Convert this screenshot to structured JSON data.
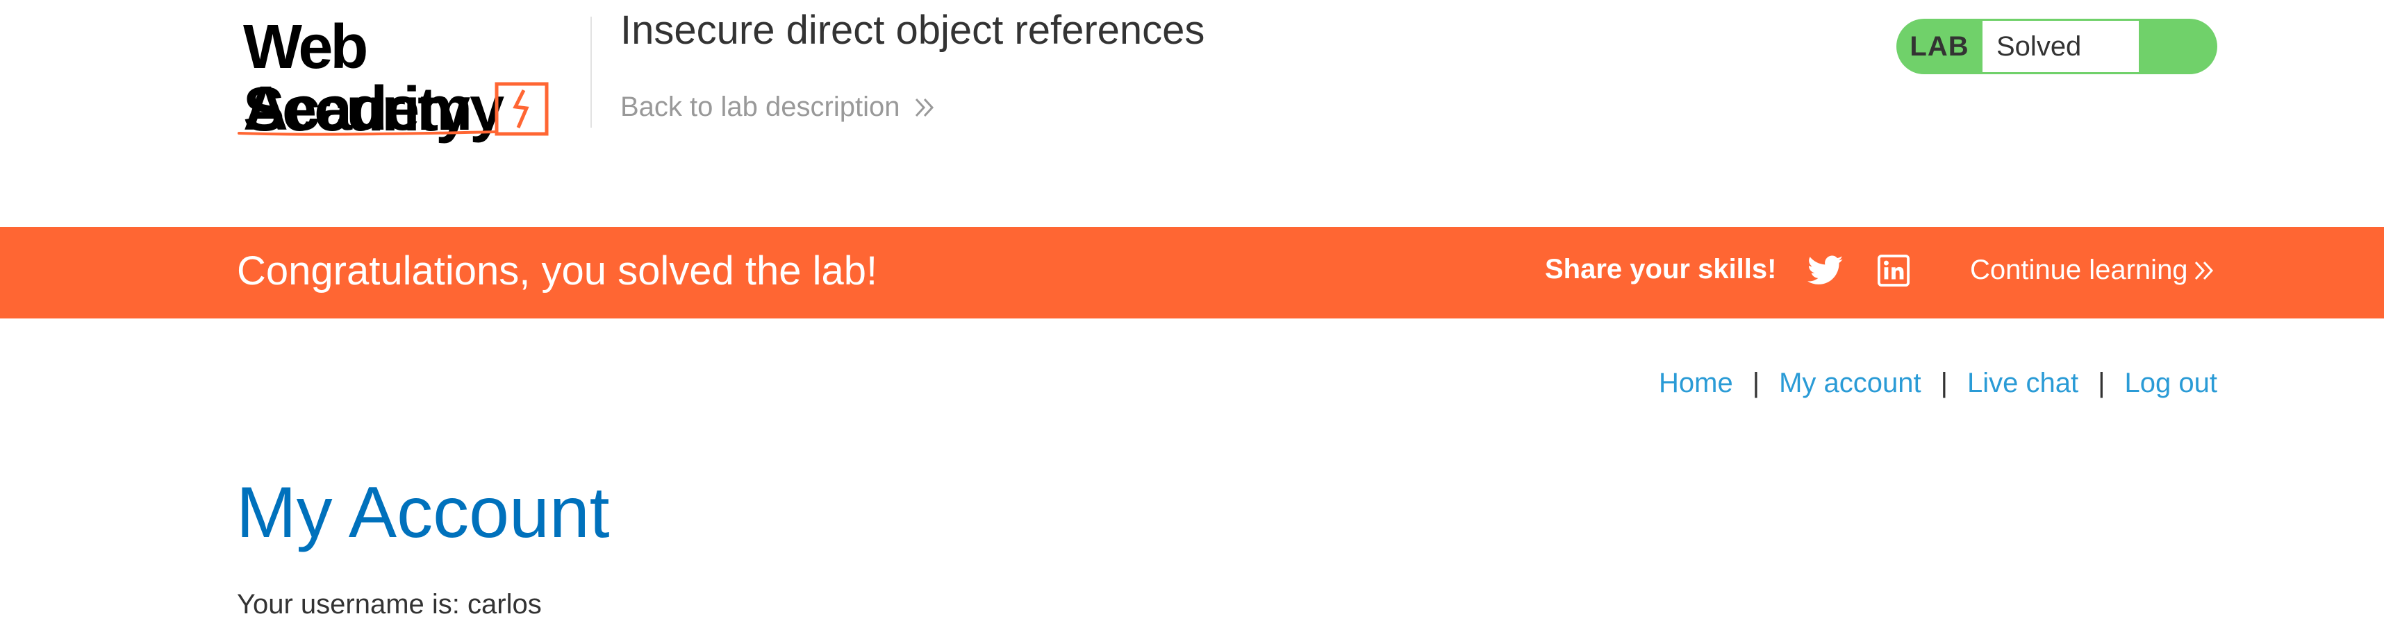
{
  "header": {
    "logo": {
      "line1": "Web Security",
      "line2": "Academy"
    },
    "lab_title": "Insecure direct object references",
    "back_link": "Back to lab description",
    "status": {
      "label": "LAB",
      "value": "Solved",
      "color": "#70d16a"
    }
  },
  "banner": {
    "message": "Congratulations, you solved the lab!",
    "share_label": "Share your skills!",
    "icons": [
      "twitter-icon",
      "linkedin-icon"
    ],
    "continue_label": "Continue learning",
    "color": "#ff6633"
  },
  "nav": {
    "links": [
      "Home",
      "My account",
      "Live chat",
      "Log out"
    ],
    "separator": "|",
    "link_color": "#2a9bd6"
  },
  "main": {
    "title": "My Account",
    "username_text": "Your username is: carlos",
    "title_color": "#0071bc"
  }
}
